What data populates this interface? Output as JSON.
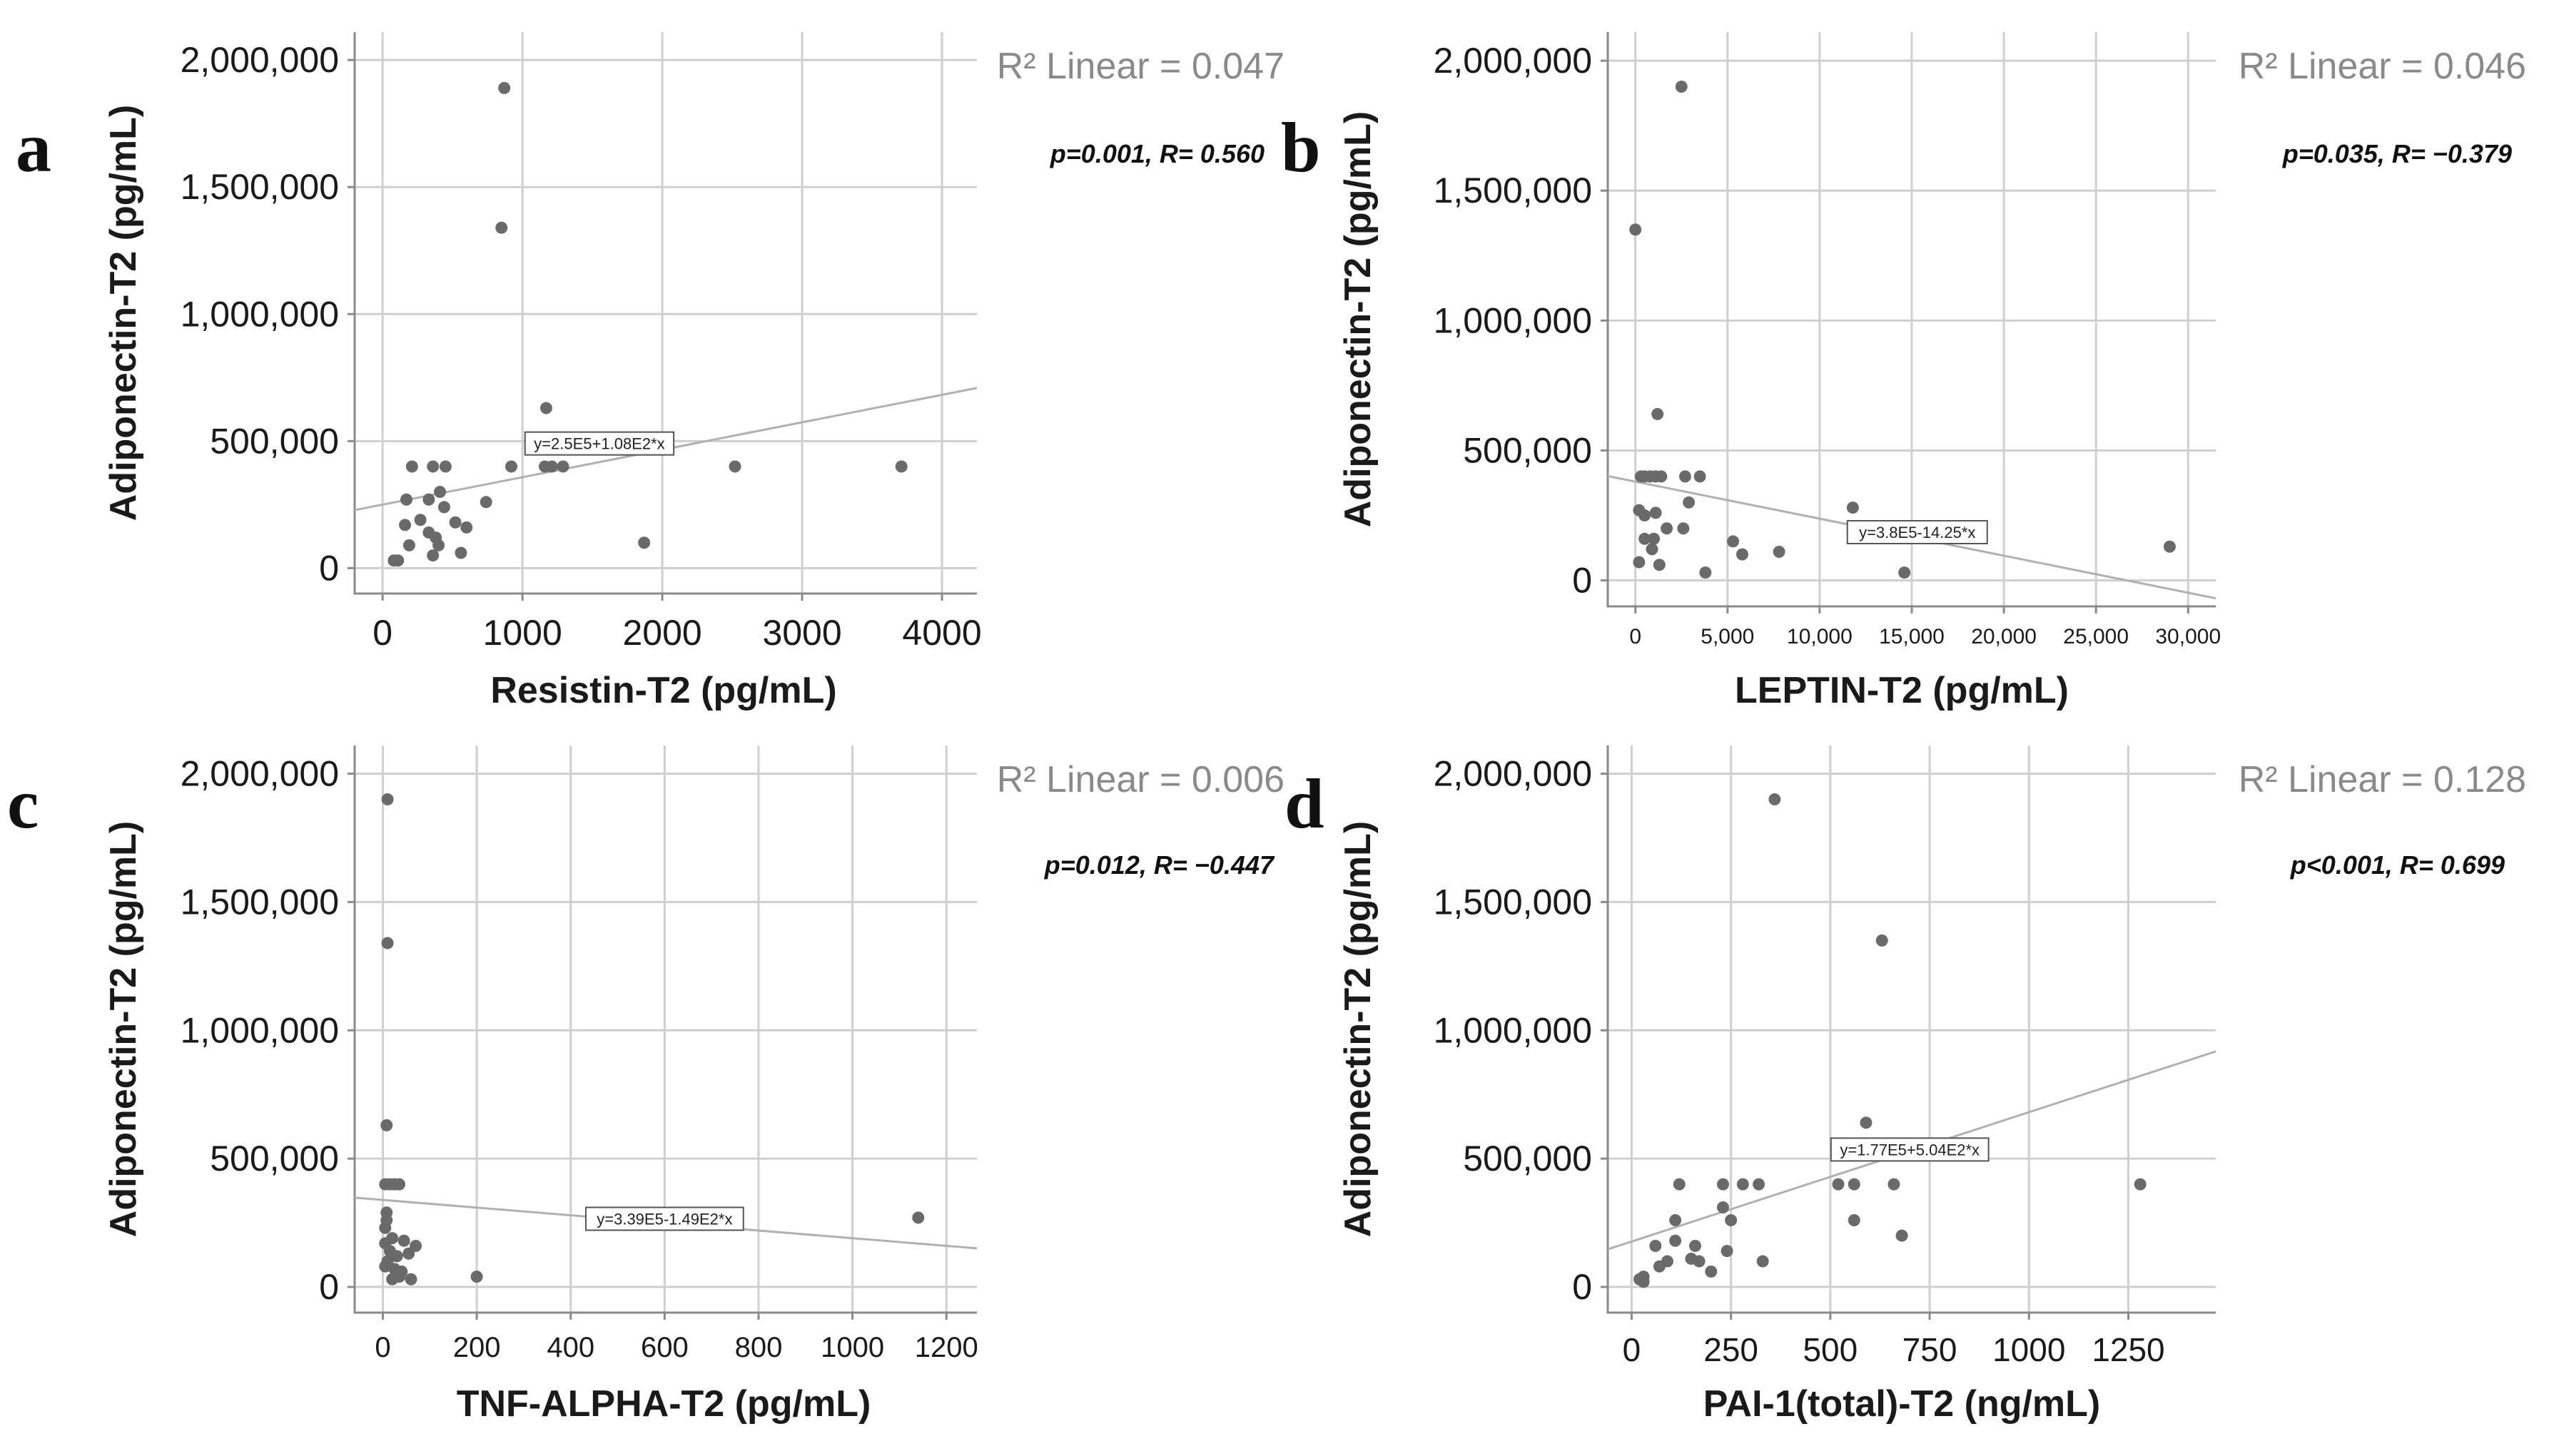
{
  "chart_data": [
    {
      "type": "scatter",
      "panel": "a",
      "xlabel": "Resistin-T2 (pg/mL)",
      "ylabel": "Adiponectin-T2 (pg/mL)",
      "xlim": [
        -200,
        4250
      ],
      "ylim": [
        -100000,
        2110000
      ],
      "xticks": [
        0,
        1000,
        2000,
        3000,
        4000
      ],
      "xtick_labels": [
        "0",
        "1000",
        "2000",
        "3000",
        "4000"
      ],
      "yticks": [
        0,
        500000,
        1000000,
        1500000,
        2000000
      ],
      "ytick_labels": [
        "0",
        "500,000",
        "1,000,000",
        "1,500,000",
        "2,000,000"
      ],
      "r2_label": "R² Linear = 0.047",
      "stat_label": "p=0.001, R= 0.560",
      "fit": {
        "intercept": 250000,
        "slope": 108
      },
      "fit_label": "y=2.5E5+1.08E2*x",
      "fit_label_at": [
        1550,
        485000
      ],
      "points": [
        [
          870,
          1890000
        ],
        [
          850,
          1340000
        ],
        [
          1170,
          630000
        ],
        [
          1160,
          400000
        ],
        [
          1210,
          400000
        ],
        [
          1290,
          400000
        ],
        [
          920,
          400000
        ],
        [
          2520,
          400000
        ],
        [
          3710,
          400000
        ],
        [
          1870,
          100000
        ],
        [
          210,
          400000
        ],
        [
          360,
          400000
        ],
        [
          450,
          400000
        ],
        [
          170,
          270000
        ],
        [
          330,
          270000
        ],
        [
          410,
          300000
        ],
        [
          440,
          240000
        ],
        [
          520,
          180000
        ],
        [
          600,
          160000
        ],
        [
          740,
          260000
        ],
        [
          160,
          170000
        ],
        [
          270,
          190000
        ],
        [
          330,
          140000
        ],
        [
          380,
          120000
        ],
        [
          400,
          90000
        ],
        [
          190,
          90000
        ],
        [
          560,
          60000
        ],
        [
          360,
          50000
        ],
        [
          80,
          30000
        ],
        [
          110,
          30000
        ]
      ]
    },
    {
      "type": "scatter",
      "panel": "b",
      "xlabel": "LEPTIN-T2 (pg/mL)",
      "ylabel": "Adiponectin-T2 (pg/mL)",
      "xlim": [
        -1500,
        31500
      ],
      "ylim": [
        -100000,
        2110000
      ],
      "xticks": [
        0,
        5000,
        10000,
        15000,
        20000,
        25000,
        30000
      ],
      "xtick_labels": [
        "0",
        "5,000",
        "10,000",
        "15,000",
        "20,000",
        "25,000",
        "30,000"
      ],
      "yticks": [
        0,
        500000,
        1000000,
        1500000,
        2000000
      ],
      "ytick_labels": [
        "0",
        "500,000",
        "1,000,000",
        "1,500,000",
        "2,000,000"
      ],
      "r2_label": "R² Linear = 0.046",
      "stat_label": "p=0.035, R= −0.379",
      "fit": {
        "intercept": 380000,
        "slope": -14.25
      },
      "fit_label": "y=3.8E5-14.25*x",
      "fit_label_at": [
        15300,
        180000
      ],
      "points": [
        [
          2500,
          1900000
        ],
        [
          0,
          1350000
        ],
        [
          1200,
          640000
        ],
        [
          300,
          400000
        ],
        [
          500,
          400000
        ],
        [
          800,
          400000
        ],
        [
          1100,
          400000
        ],
        [
          1400,
          400000
        ],
        [
          2700,
          400000
        ],
        [
          3500,
          400000
        ],
        [
          11800,
          280000
        ],
        [
          200,
          270000
        ],
        [
          500,
          250000
        ],
        [
          1100,
          260000
        ],
        [
          2900,
          300000
        ],
        [
          1700,
          200000
        ],
        [
          2600,
          200000
        ],
        [
          1000,
          160000
        ],
        [
          500,
          160000
        ],
        [
          5300,
          150000
        ],
        [
          5800,
          100000
        ],
        [
          7800,
          110000
        ],
        [
          900,
          120000
        ],
        [
          200,
          70000
        ],
        [
          1300,
          60000
        ],
        [
          3800,
          30000
        ],
        [
          14600,
          30000
        ],
        [
          29000,
          130000
        ]
      ]
    },
    {
      "type": "scatter",
      "panel": "c",
      "xlabel": "TNF-ALPHA-T2 (pg/mL)",
      "ylabel": "Adiponectin-T2 (pg/mL)",
      "xlim": [
        -60,
        1265
      ],
      "ylim": [
        -100000,
        2110000
      ],
      "xticks": [
        0,
        200,
        400,
        600,
        800,
        1000,
        1200
      ],
      "xtick_labels": [
        "0",
        "200",
        "400",
        "600",
        "800",
        "1000",
        "1200"
      ],
      "yticks": [
        0,
        500000,
        1000000,
        1500000,
        2000000
      ],
      "ytick_labels": [
        "0",
        "500,000",
        "1,000,000",
        "1,500,000",
        "2,000,000"
      ],
      "r2_label": "R² Linear = 0.006",
      "stat_label": "p=0.012, R= −0.447",
      "fit": {
        "intercept": 339000,
        "slope": -149
      },
      "fit_label": "y=3.39E5-1.49E2*x",
      "fit_label_at": [
        600,
        260000
      ],
      "points": [
        [
          10,
          1900000
        ],
        [
          10,
          1340000
        ],
        [
          8,
          630000
        ],
        [
          5,
          400000
        ],
        [
          15,
          400000
        ],
        [
          25,
          400000
        ],
        [
          35,
          400000
        ],
        [
          8,
          290000
        ],
        [
          8,
          260000
        ],
        [
          5,
          230000
        ],
        [
          20,
          190000
        ],
        [
          45,
          180000
        ],
        [
          5,
          170000
        ],
        [
          70,
          160000
        ],
        [
          15,
          140000
        ],
        [
          30,
          120000
        ],
        [
          55,
          130000
        ],
        [
          10,
          100000
        ],
        [
          5,
          80000
        ],
        [
          25,
          70000
        ],
        [
          40,
          60000
        ],
        [
          35,
          40000
        ],
        [
          60,
          30000
        ],
        [
          200,
          40000
        ],
        [
          20,
          30000
        ],
        [
          1140,
          270000
        ]
      ]
    },
    {
      "type": "scatter",
      "panel": "d",
      "xlabel": "PAI-1(total)-T2 (ng/mL)",
      "ylabel": "Adiponectin-T2 (pg/mL)",
      "xlim": [
        -60,
        1470
      ],
      "ylim": [
        -100000,
        2110000
      ],
      "xticks": [
        0,
        250,
        500,
        750,
        1000,
        1250
      ],
      "xtick_labels": [
        "0",
        "250",
        "500",
        "750",
        "1000",
        "1250"
      ],
      "yticks": [
        0,
        500000,
        1000000,
        1500000,
        2000000
      ],
      "ytick_labels": [
        "0",
        "500,000",
        "1,000,000",
        "1,500,000",
        "2,000,000"
      ],
      "r2_label": "R² Linear = 0.128",
      "stat_label": "p<0.001, R= 0.699",
      "fit": {
        "intercept": 177000,
        "slope": 504
      },
      "fit_label": "y=1.77E5+5.04E2*x",
      "fit_label_at": [
        700,
        530000
      ],
      "points": [
        [
          360,
          1900000
        ],
        [
          630,
          1350000
        ],
        [
          590,
          640000
        ],
        [
          120,
          400000
        ],
        [
          230,
          400000
        ],
        [
          280,
          400000
        ],
        [
          320,
          400000
        ],
        [
          520,
          400000
        ],
        [
          560,
          400000
        ],
        [
          660,
          400000
        ],
        [
          1280,
          400000
        ],
        [
          230,
          310000
        ],
        [
          560,
          260000
        ],
        [
          110,
          260000
        ],
        [
          250,
          260000
        ],
        [
          680,
          200000
        ],
        [
          110,
          180000
        ],
        [
          160,
          160000
        ],
        [
          240,
          140000
        ],
        [
          60,
          160000
        ],
        [
          150,
          110000
        ],
        [
          170,
          100000
        ],
        [
          90,
          100000
        ],
        [
          330,
          100000
        ],
        [
          70,
          80000
        ],
        [
          200,
          60000
        ],
        [
          30,
          40000
        ],
        [
          20,
          30000
        ],
        [
          30,
          20000
        ]
      ]
    }
  ]
}
